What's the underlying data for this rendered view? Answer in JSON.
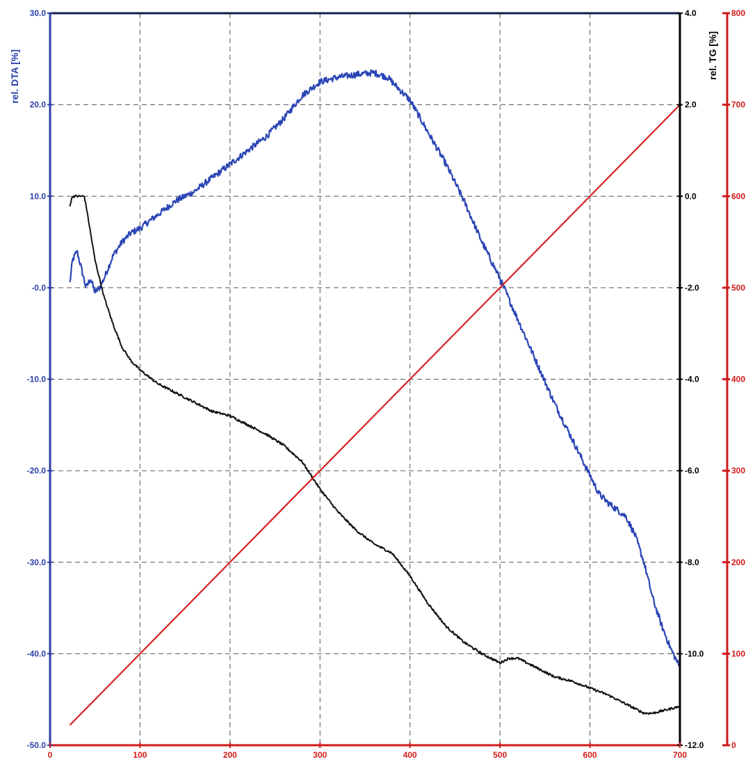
{
  "chart_data": {
    "type": "line",
    "grid": true,
    "x_axis": {
      "range": [
        0,
        700
      ],
      "ticks": [
        0,
        100,
        200,
        300,
        400,
        500,
        600,
        700
      ],
      "tick_labels": [
        "0",
        "100",
        "200",
        "300",
        "400",
        "500",
        "600",
        "700"
      ],
      "color": "#d11a1a"
    },
    "axes": {
      "dta": {
        "label": "rel. DTA  [%]",
        "range": [
          -50,
          30
        ],
        "ticks": [
          30,
          20,
          10,
          0,
          -10,
          -20,
          -30,
          -40,
          -50
        ],
        "tick_labels": [
          "30.0",
          "20.0",
          "10.0",
          "-0.0",
          "-10.0",
          "-20.0",
          "-30.0",
          "-40.0",
          "-50.0"
        ],
        "color": "#2a3fa8"
      },
      "tg": {
        "label": "rel. TG  [%]",
        "range": [
          -12,
          4
        ],
        "ticks": [
          4,
          2,
          0,
          -2,
          -4,
          -6,
          -8,
          -10,
          -12
        ],
        "tick_labels": [
          "4.0",
          "2.0",
          "0.0",
          "-2.0",
          "-4.0",
          "-6.0",
          "-8.0",
          "-10.0",
          "-12.0"
        ],
        "color": "#000000"
      },
      "temp": {
        "range": [
          0,
          800
        ],
        "ticks": [
          800,
          700,
          600,
          500,
          400,
          300,
          200,
          100,
          0
        ],
        "tick_labels": [
          "800",
          "700",
          "600",
          "500",
          "400",
          "300",
          "200",
          "100",
          "0"
        ],
        "color": "#d11a1a"
      }
    },
    "series": [
      {
        "axis": "dta",
        "color": "#2a45b5",
        "noise": 0.7,
        "x": [
          22,
          25,
          30,
          35,
          40,
          45,
          50,
          55,
          60,
          70,
          80,
          90,
          100,
          120,
          140,
          160,
          180,
          200,
          220,
          240,
          260,
          280,
          300,
          320,
          340,
          360,
          375,
          390,
          400,
          420,
          440,
          460,
          480,
          500,
          520,
          540,
          560,
          580,
          600,
          610,
          620,
          640,
          650,
          660,
          670,
          680,
          690,
          700
        ],
        "y": [
          0.5,
          3.0,
          4.0,
          2.0,
          0.0,
          1.0,
          -0.5,
          0.0,
          1.0,
          3.5,
          5.0,
          6.0,
          6.5,
          8.0,
          9.5,
          10.5,
          12.0,
          13.5,
          15.0,
          16.5,
          18.5,
          21.0,
          22.5,
          23.0,
          23.3,
          23.5,
          23.0,
          21.5,
          20.5,
          17.0,
          13.5,
          9.5,
          5.0,
          1.0,
          -3.5,
          -8.0,
          -12.5,
          -16.5,
          -20.5,
          -22.5,
          -23.5,
          -25.0,
          -27.0,
          -30.0,
          -34.0,
          -37.0,
          -39.5,
          -41.5
        ]
      },
      {
        "axis": "tg",
        "color": "#111111",
        "noise": 0.05,
        "x": [
          22,
          25,
          30,
          35,
          38,
          40,
          45,
          50,
          55,
          60,
          70,
          80,
          90,
          100,
          120,
          140,
          160,
          180,
          200,
          220,
          240,
          260,
          280,
          300,
          320,
          340,
          360,
          370,
          380,
          400,
          420,
          440,
          460,
          480,
          500,
          510,
          520,
          540,
          560,
          580,
          600,
          620,
          640,
          660,
          670,
          680,
          690,
          700
        ],
        "y": [
          -0.2,
          0.0,
          0.0,
          0.0,
          0.0,
          -0.2,
          -0.8,
          -1.4,
          -1.8,
          -2.2,
          -2.8,
          -3.3,
          -3.6,
          -3.8,
          -4.1,
          -4.3,
          -4.5,
          -4.7,
          -4.8,
          -5.0,
          -5.2,
          -5.45,
          -5.8,
          -6.4,
          -6.9,
          -7.3,
          -7.6,
          -7.7,
          -7.8,
          -8.3,
          -8.9,
          -9.4,
          -9.75,
          -10.0,
          -10.2,
          -10.1,
          -10.1,
          -10.3,
          -10.5,
          -10.6,
          -10.75,
          -10.9,
          -11.1,
          -11.3,
          -11.3,
          -11.25,
          -11.2,
          -11.15
        ]
      },
      {
        "axis": "temp",
        "color": "#d62020",
        "noise": 0,
        "x": [
          22,
          700
        ],
        "y": [
          22,
          700
        ]
      }
    ]
  }
}
